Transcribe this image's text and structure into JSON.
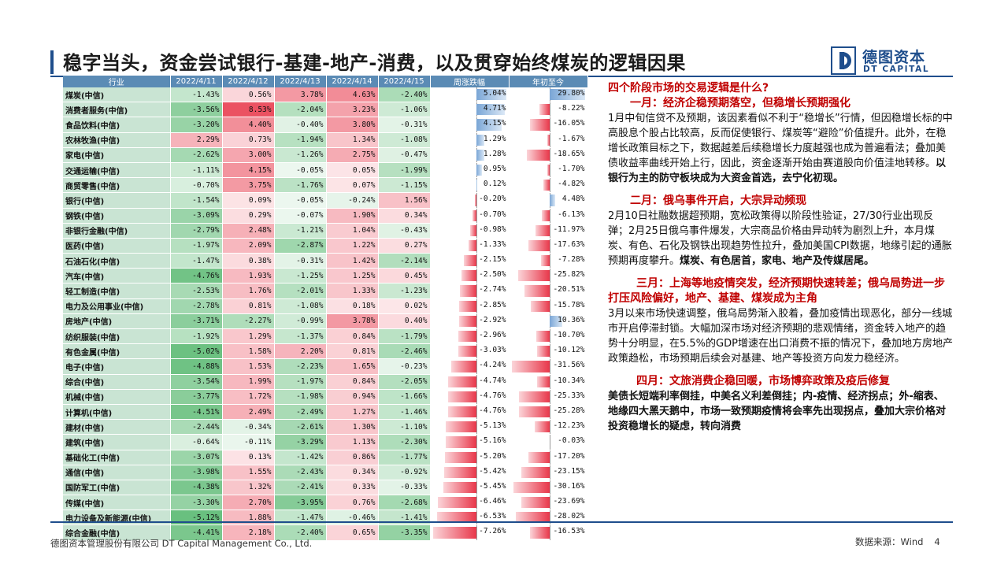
{
  "title": "稳字当头，资金尝试银行-基建-地产-消费，以及贯穿始终煤炭的逻辑因果",
  "logo": {
    "cn": "德图资本",
    "en": "DT CAPITAL"
  },
  "colors": {
    "accent": "#1f4e8c",
    "up": "#e8374a",
    "down": "#57b86f",
    "bar_neg": "#e8374a",
    "bar_pos": "#7aa6d6",
    "highlight": "#c00000"
  },
  "table": {
    "headers": [
      "行业",
      "2022/4/11",
      "2022/4/12",
      "2022/4/13",
      "2022/4/14",
      "2022/4/15",
      "周涨跌幅",
      "年初至今"
    ],
    "rows": [
      {
        "name": "煤炭(中信)",
        "d": [
          "-1.43%",
          "0.56%",
          "3.78%",
          "4.63%",
          "-2.40%"
        ],
        "week": "5.04%",
        "ytd": "29.80%"
      },
      {
        "name": "消费者服务(中信)",
        "d": [
          "-3.56%",
          "8.53%",
          "-2.04%",
          "3.23%",
          "-1.06%"
        ],
        "week": "4.71%",
        "ytd": "-8.22%"
      },
      {
        "name": "食品饮料(中信)",
        "d": [
          "-3.20%",
          "4.40%",
          "-0.40%",
          "3.80%",
          "-0.31%"
        ],
        "week": "4.15%",
        "ytd": "-16.05%"
      },
      {
        "name": "农林牧渔(中信)",
        "d": [
          "2.29%",
          "0.73%",
          "-1.94%",
          "1.34%",
          "-1.08%"
        ],
        "week": "1.29%",
        "ytd": "-1.67%"
      },
      {
        "name": "家电(中信)",
        "d": [
          "-2.62%",
          "3.00%",
          "-1.26%",
          "2.75%",
          "-0.47%"
        ],
        "week": "1.28%",
        "ytd": "-18.65%"
      },
      {
        "name": "交通运输(中信)",
        "d": [
          "-1.11%",
          "4.15%",
          "-0.05%",
          "0.05%",
          "-1.99%"
        ],
        "week": "0.95%",
        "ytd": "-1.70%"
      },
      {
        "name": "商贸零售(中信)",
        "d": [
          "-0.70%",
          "3.75%",
          "-1.76%",
          "0.07%",
          "-1.15%"
        ],
        "week": "0.12%",
        "ytd": "-4.82%"
      },
      {
        "name": "银行(中信)",
        "d": [
          "-1.54%",
          "0.09%",
          "-0.05%",
          "-0.24%",
          "1.56%"
        ],
        "week": "-0.20%",
        "ytd": "4.48%"
      },
      {
        "name": "钢铁(中信)",
        "d": [
          "-3.09%",
          "0.29%",
          "-0.07%",
          "1.90%",
          "0.34%"
        ],
        "week": "-0.70%",
        "ytd": "-6.13%"
      },
      {
        "name": "非银行金融(中信)",
        "d": [
          "-2.79%",
          "2.48%",
          "-1.21%",
          "1.04%",
          "-0.43%"
        ],
        "week": "-0.98%",
        "ytd": "-11.97%"
      },
      {
        "name": "医药(中信)",
        "d": [
          "-1.97%",
          "2.09%",
          "-2.87%",
          "1.22%",
          "0.27%"
        ],
        "week": "-1.33%",
        "ytd": "-17.63%"
      },
      {
        "name": "石油石化(中信)",
        "d": [
          "-1.47%",
          "0.38%",
          "-0.31%",
          "1.42%",
          "-2.14%"
        ],
        "week": "-2.15%",
        "ytd": "-7.28%"
      },
      {
        "name": "汽车(中信)",
        "d": [
          "-4.76%",
          "1.93%",
          "-1.25%",
          "1.25%",
          "0.45%"
        ],
        "week": "-2.50%",
        "ytd": "-25.82%"
      },
      {
        "name": "轻工制造(中信)",
        "d": [
          "-2.53%",
          "1.76%",
          "-2.01%",
          "1.33%",
          "-1.23%"
        ],
        "week": "-2.74%",
        "ytd": "-20.51%"
      },
      {
        "name": "电力及公用事业(中信)",
        "d": [
          "-2.78%",
          "0.81%",
          "-1.08%",
          "0.18%",
          "0.02%"
        ],
        "week": "-2.85%",
        "ytd": "-15.78%"
      },
      {
        "name": "房地产(中信)",
        "d": [
          "-3.71%",
          "-2.27%",
          "-0.99%",
          "3.78%",
          "0.40%"
        ],
        "week": "-2.92%",
        "ytd": "10.36%"
      },
      {
        "name": "纺织服装(中信)",
        "d": [
          "-1.92%",
          "1.29%",
          "-1.37%",
          "0.84%",
          "-1.79%"
        ],
        "week": "-2.96%",
        "ytd": "-10.70%"
      },
      {
        "name": "有色金属(中信)",
        "d": [
          "-5.02%",
          "1.58%",
          "2.20%",
          "0.81%",
          "-2.46%"
        ],
        "week": "-3.03%",
        "ytd": "-10.12%"
      },
      {
        "name": "电子(中信)",
        "d": [
          "-4.88%",
          "1.53%",
          "-2.23%",
          "1.65%",
          "-0.23%"
        ],
        "week": "-4.24%",
        "ytd": "-31.56%"
      },
      {
        "name": "综合(中信)",
        "d": [
          "-3.54%",
          "1.99%",
          "-1.97%",
          "0.84%",
          "-2.05%"
        ],
        "week": "-4.74%",
        "ytd": "-10.34%"
      },
      {
        "name": "机械(中信)",
        "d": [
          "-3.77%",
          "1.72%",
          "-1.98%",
          "0.94%",
          "-1.66%"
        ],
        "week": "-4.76%",
        "ytd": "-25.33%"
      },
      {
        "name": "计算机(中信)",
        "d": [
          "-4.51%",
          "2.49%",
          "-2.49%",
          "1.27%",
          "-1.46%"
        ],
        "week": "-4.76%",
        "ytd": "-25.28%"
      },
      {
        "name": "建材(中信)",
        "d": [
          "-2.44%",
          "-0.34%",
          "-2.61%",
          "1.30%",
          "-1.10%"
        ],
        "week": "-5.13%",
        "ytd": "-12.23%"
      },
      {
        "name": "建筑(中信)",
        "d": [
          "-0.64%",
          "-0.11%",
          "-3.29%",
          "1.13%",
          "-2.30%"
        ],
        "week": "-5.16%",
        "ytd": "-0.03%"
      },
      {
        "name": "基础化工(中信)",
        "d": [
          "-3.07%",
          "0.13%",
          "-1.42%",
          "0.86%",
          "-1.77%"
        ],
        "week": "-5.20%",
        "ytd": "-17.20%"
      },
      {
        "name": "通信(中信)",
        "d": [
          "-3.98%",
          "1.55%",
          "-2.43%",
          "0.34%",
          "-0.92%"
        ],
        "week": "-5.42%",
        "ytd": "-23.15%"
      },
      {
        "name": "国防军工(中信)",
        "d": [
          "-4.38%",
          "1.32%",
          "-2.41%",
          "0.33%",
          "-0.33%"
        ],
        "week": "-5.45%",
        "ytd": "-30.16%"
      },
      {
        "name": "传媒(中信)",
        "d": [
          "-3.30%",
          "2.70%",
          "-3.95%",
          "0.76%",
          "-2.68%"
        ],
        "week": "-6.46%",
        "ytd": "-23.69%"
      },
      {
        "name": "电力设备及新能源(中信)",
        "d": [
          "-5.12%",
          "1.88%",
          "-1.47%",
          "-0.46%",
          "-1.41%"
        ],
        "week": "-6.53%",
        "ytd": "-28.02%"
      },
      {
        "name": "综合金融(中信)",
        "d": [
          "-4.41%",
          "2.18%",
          "-2.40%",
          "0.65%",
          "-3.35%"
        ],
        "week": "-7.26%",
        "ytd": "-16.53%"
      }
    ]
  },
  "right": {
    "q": "四个阶段市场的交易逻辑是什么?",
    "s1_head": "一月：经济企稳预期落空，但稳增长预期强化",
    "s1_body": "1月中旬信贷不及预期，该因素看似不利于“稳增长”行情，但因稳增长标的中高股息个股占比较高，反而促使银行、煤炭等“避险”价值提升。此外，在稳增长政策目标之下，数据越差后续稳增长力度越强也成为普遍看法；叠加美债收益率曲线开始上行，因此，资金逐渐开始由赛道股向价值洼地转移。",
    "s1_bold": "以银行为主的防守板块成为大资金首选，去宁化初现。",
    "s2_head": "二月：俄乌事件开启，大宗异动频现",
    "s2_body": "2月10日社融数据超预期，宽松政策得以阶段性验证，27/30行业出现反弹；2月25日俄乌事件爆发，大宗商品价格由异动转为剧烈上升，本月煤炭、有色、石化及钢铁出现趋势性拉升，叠加美国CPI数据，地缘引起的通胀预期再度攀升。",
    "s2_bold": "煤炭、有色居首，家电、地产及传媒居尾。",
    "s3_head": "三月：上海等地疫情突发，经济预期快速转差；俄乌局势进一步打压风险偏好，地产、基建、煤炭成为主角",
    "s3_body": "3月以来市场快速调整，俄乌局势渐入胶着，叠加疫情出现恶化，部分一线城市开启停滞封锁。大幅加深市场对经济预期的悲观情绪，资金转入地产的趋势十分明显，在5.5%的GDP增速在出口消费不振的情况下，叠加地方房地产政策趋松，市场预期后续会对基建、地产等投资方向发力稳经济。",
    "s4_head": "四月：文旅消费企稳回暖，市场博弈政策及疫后修复",
    "s4_body": "美债长短端利率倒挂，中美名义利差倒挂；内-疫情、经济拐点；外-缩表、地缘四大黑天鹅中，市场一致预期疫情将会率先出现拐点，叠加大宗价格对投资稳增长的疑虑，转向消费"
  },
  "footer": {
    "company": "德图资本管理股份有限公司 DT Capital Management Co., Ltd.",
    "source": "数据来源：Wind",
    "page": "4"
  }
}
